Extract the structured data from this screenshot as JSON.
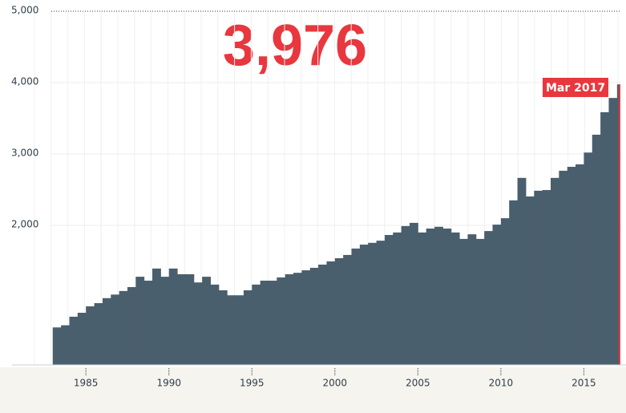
{
  "chart_data": {
    "type": "step-area",
    "color": "#4a5f6d",
    "highlight_color": "#e8373e",
    "x": [
      1983.0,
      1983.5,
      1984.0,
      1984.5,
      1985.0,
      1985.5,
      1986.0,
      1986.5,
      1987.0,
      1987.5,
      1988.0,
      1988.5,
      1989.0,
      1989.5,
      1990.0,
      1990.5,
      1991.0,
      1991.5,
      1992.0,
      1992.5,
      1993.0,
      1993.5,
      1994.0,
      1994.5,
      1995.0,
      1995.5,
      1996.0,
      1996.5,
      1997.0,
      1997.5,
      1998.0,
      1998.5,
      1999.0,
      1999.5,
      2000.0,
      2000.5,
      2001.0,
      2001.5,
      2002.0,
      2002.5,
      2003.0,
      2003.5,
      2004.0,
      2004.5,
      2005.0,
      2005.5,
      2006.0,
      2006.5,
      2007.0,
      2007.5,
      2008.0,
      2008.5,
      2009.0,
      2009.5,
      2010.0,
      2010.5,
      2011.0,
      2011.5,
      2012.0,
      2012.5,
      2013.0,
      2013.5,
      2014.0,
      2014.5,
      2015.0,
      2015.5,
      2016.0,
      2016.5,
      2017.0
    ],
    "values": [
      570,
      600,
      720,
      775,
      865,
      910,
      980,
      1030,
      1080,
      1135,
      1280,
      1225,
      1395,
      1280,
      1395,
      1315,
      1315,
      1200,
      1280,
      1170,
      1090,
      1020,
      1020,
      1090,
      1170,
      1225,
      1225,
      1270,
      1315,
      1335,
      1370,
      1405,
      1450,
      1495,
      1540,
      1585,
      1675,
      1730,
      1755,
      1785,
      1865,
      1900,
      1990,
      2035,
      1900,
      1955,
      1980,
      1955,
      1900,
      1810,
      1875,
      1810,
      1920,
      2010,
      2100,
      2350,
      2665,
      2405,
      2485,
      2495,
      2665,
      2765,
      2820,
      2855,
      3020,
      3270,
      3585,
      3785,
      3975
    ],
    "latest": {
      "label": "Mar 2017",
      "value": 3976,
      "value_label": "3,976"
    },
    "xlim": [
      1981.9,
      2017.25
    ],
    "ylim": [
      0,
      5000
    ],
    "xticks": [
      1985,
      1990,
      1995,
      2000,
      2005,
      2010,
      2015
    ],
    "yticks": [
      {
        "value": 2000,
        "label": "2,000"
      },
      {
        "value": 3000,
        "label": "3,000"
      },
      {
        "value": 4000,
        "label": "4,000"
      },
      {
        "value": 5000,
        "label": "5,000"
      }
    ]
  }
}
